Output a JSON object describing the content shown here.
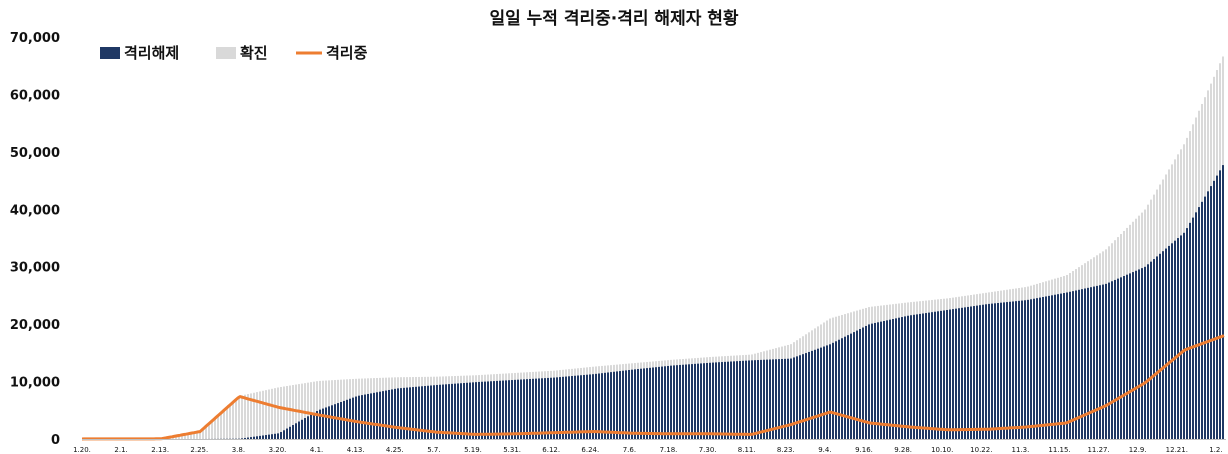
{
  "chart_data": {
    "type": "bar",
    "title": "일일 누적 격리중·격리 해제자 현황",
    "xlabel": "",
    "ylabel": "",
    "ylim": [
      0,
      70000
    ],
    "yticks": [
      "0",
      "10,000",
      "20,000",
      "30,000",
      "40,000",
      "50,000",
      "60,000",
      "70,000"
    ],
    "grid": false,
    "legend_position": "top-left",
    "x_labels": [
      "1.20.",
      "2.1.",
      "2.13.",
      "2.25.",
      "3.8.",
      "3.20.",
      "4.1.",
      "4.13.",
      "4.25.",
      "5.7.",
      "5.19.",
      "5.31.",
      "6.12.",
      "6.24.",
      "7.6.",
      "7.18.",
      "7.30.",
      "8.11.",
      "8.23.",
      "9.4.",
      "9.16.",
      "9.28.",
      "10.10.",
      "10.22.",
      "11.3.",
      "11.15.",
      "11.27.",
      "12.9.",
      "12.21.",
      "1.2."
    ],
    "series": [
      {
        "name": "격리해제",
        "type": "stacked-bar",
        "color": "#1f3864",
        "values": [
          0,
          0,
          0,
          0,
          50,
          1000,
          5000,
          7500,
          8800,
          9400,
          9900,
          10300,
          10700,
          11300,
          12100,
          12800,
          13300,
          13700,
          14000,
          16500,
          20000,
          21500,
          22500,
          23500,
          24200,
          25500,
          27000,
          30000,
          36000,
          48000
        ]
      },
      {
        "name": "확진",
        "type": "stacked-bar-total",
        "color": "#d9d9d9",
        "values": [
          10,
          15,
          28,
          1300,
          7500,
          9000,
          10100,
          10500,
          10750,
          10850,
          11100,
          11500,
          11900,
          12600,
          13200,
          13800,
          14300,
          14700,
          16500,
          21000,
          23000,
          23800,
          24500,
          25500,
          26500,
          28500,
          33000,
          40000,
          51500,
          67000
        ]
      },
      {
        "name": "격리중",
        "type": "line",
        "color": "#ed7d31",
        "values": [
          10,
          15,
          28,
          1300,
          7400,
          5500,
          4200,
          3000,
          2000,
          1200,
          800,
          900,
          1100,
          1300,
          1000,
          900,
          900,
          800,
          2500,
          4700,
          2800,
          2100,
          1600,
          1700,
          2100,
          2800,
          5800,
          9800,
          15500,
          18000
        ]
      }
    ]
  }
}
